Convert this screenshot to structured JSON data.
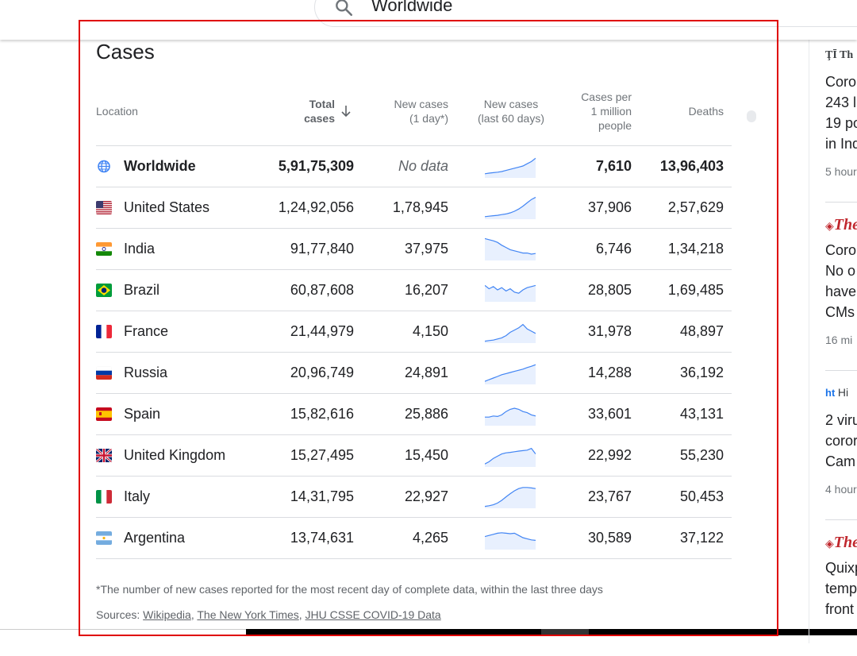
{
  "search": {
    "query": "Worldwide"
  },
  "cases": {
    "title": "Cases",
    "headers": {
      "location": "Location",
      "total_line1": "Total",
      "total_line2": "cases",
      "new1_line1": "New cases",
      "new1_line2": "(1 day*)",
      "new60_line1": "New cases",
      "new60_line2": "(last 60 days)",
      "permil_line1": "Cases per",
      "permil_line2": "1 million",
      "permil_line3": "people",
      "deaths": "Deaths"
    },
    "rows": [
      {
        "name": "Worldwide",
        "total": "5,91,75,309",
        "new1": "No data",
        "per_million": "7,610",
        "deaths": "13,96,403",
        "icon": "globe-icon"
      },
      {
        "name": "United States",
        "total": "1,24,92,056",
        "new1": "1,78,945",
        "per_million": "37,906",
        "deaths": "2,57,629",
        "icon": "flag-us"
      },
      {
        "name": "India",
        "total": "91,77,840",
        "new1": "37,975",
        "per_million": "6,746",
        "deaths": "1,34,218",
        "icon": "flag-in"
      },
      {
        "name": "Brazil",
        "total": "60,87,608",
        "new1": "16,207",
        "per_million": "28,805",
        "deaths": "1,69,485",
        "icon": "flag-br"
      },
      {
        "name": "France",
        "total": "21,44,979",
        "new1": "4,150",
        "per_million": "31,978",
        "deaths": "48,897",
        "icon": "flag-fr"
      },
      {
        "name": "Russia",
        "total": "20,96,749",
        "new1": "24,891",
        "per_million": "14,288",
        "deaths": "36,192",
        "icon": "flag-ru"
      },
      {
        "name": "Spain",
        "total": "15,82,616",
        "new1": "25,886",
        "per_million": "33,601",
        "deaths": "43,131",
        "icon": "flag-es"
      },
      {
        "name": "United Kingdom",
        "total": "15,27,495",
        "new1": "15,450",
        "per_million": "22,992",
        "deaths": "55,230",
        "icon": "flag-gb"
      },
      {
        "name": "Italy",
        "total": "14,31,795",
        "new1": "22,927",
        "per_million": "23,767",
        "deaths": "50,453",
        "icon": "flag-it"
      },
      {
        "name": "Argentina",
        "total": "13,74,631",
        "new1": "4,265",
        "per_million": "30,589",
        "deaths": "37,122",
        "icon": "flag-ar"
      }
    ],
    "footnote": "*The number of new cases reported for the most recent day of complete data, within the last three days",
    "sources_label": "Sources:",
    "sources": [
      "Wikipedia",
      "The New York Times",
      "JHU CSSE COVID-19 Data"
    ]
  },
  "news": [
    {
      "source": "Th",
      "headline_lines": [
        "Coro",
        "243 l",
        "19 po",
        "in Ind"
      ],
      "time": "5 hour"
    },
    {
      "source": "The",
      "headline_lines": [
        "Coro",
        "No o",
        "have",
        "CMs"
      ],
      "time": "16 mi"
    },
    {
      "source": "Hi",
      "headline_lines": [
        "2 viru",
        "coror",
        "Cam"
      ],
      "time": "4 hour"
    },
    {
      "source": "The",
      "headline_lines": [
        "Quixp",
        "temp",
        "front"
      ],
      "time": ""
    }
  ],
  "colors": {
    "sparkline_stroke": "#4285f4",
    "sparkline_fill": "#e8f0fe",
    "frame": "#e00000"
  }
}
